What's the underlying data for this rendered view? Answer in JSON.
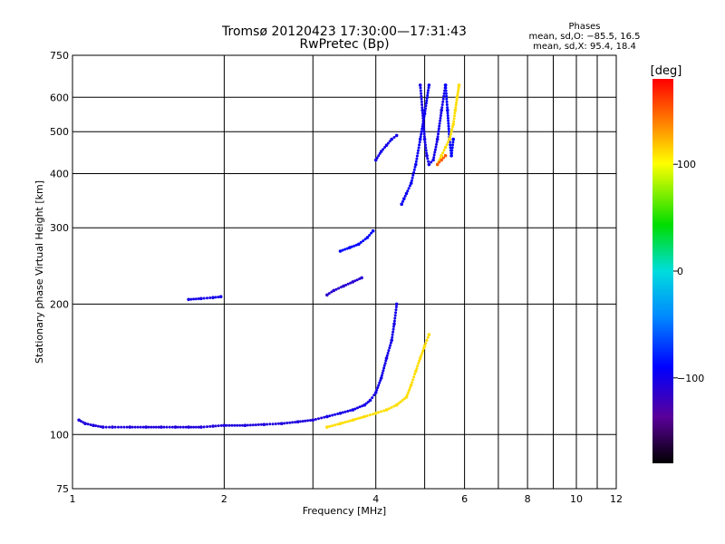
{
  "header": {
    "title_line1": "Tromsø 20120423 17:30:00—17:31:43",
    "title_line2": "RwPretec (Bp)",
    "phases_title": "Phases",
    "phases_line1": "mean, sd,O: −85.5, 16.5",
    "phases_line2": "mean, sd,X:  95.4, 18.4"
  },
  "colorbar": {
    "unit": "[deg]",
    "ticks": [
      {
        "value": 100,
        "label": "100"
      },
      {
        "value": 0,
        "label": "0"
      },
      {
        "value": -100,
        "label": "−100"
      }
    ],
    "range": [
      -180,
      180
    ]
  },
  "chart_data": {
    "type": "scatter",
    "title": "Tromsø 20120423 17:30:00—17:31:43",
    "subtitle": "RwPretec (Bp)",
    "xlabel": "Frequency [MHz]",
    "ylabel": "Stationary phase Virtual Height [km]",
    "x_scale": "log",
    "y_scale": "log",
    "xlim": [
      1,
      12
    ],
    "ylim": [
      75,
      750
    ],
    "x_ticks": [
      {
        "value": 1,
        "label": "1"
      },
      {
        "value": 2,
        "label": "2"
      },
      {
        "value": 4,
        "label": "4"
      },
      {
        "value": 6,
        "label": "6"
      },
      {
        "value": 8,
        "label": "8"
      },
      {
        "value": 10,
        "label": "10"
      },
      {
        "value": 12,
        "label": "12"
      }
    ],
    "x_grid": [
      1,
      2,
      3,
      4,
      5,
      6,
      7,
      8,
      9,
      10,
      11,
      12
    ],
    "y_ticks": [
      {
        "value": 75,
        "label": "75"
      },
      {
        "value": 100,
        "label": "100"
      },
      {
        "value": 200,
        "label": "200"
      },
      {
        "value": 300,
        "label": "300"
      },
      {
        "value": 400,
        "label": "400"
      },
      {
        "value": 500,
        "label": "500"
      },
      {
        "value": 600,
        "label": "600"
      },
      {
        "value": 750,
        "label": "750"
      }
    ],
    "grid": true,
    "traces": [
      {
        "component": "O",
        "phase_deg": -105,
        "points": [
          [
            1.03,
            108
          ],
          [
            1.06,
            106
          ],
          [
            1.1,
            105
          ],
          [
            1.15,
            104
          ],
          [
            1.2,
            104
          ],
          [
            1.3,
            104
          ],
          [
            1.4,
            104
          ],
          [
            1.5,
            104
          ],
          [
            1.6,
            104
          ],
          [
            1.7,
            104
          ],
          [
            1.8,
            104
          ],
          [
            1.9,
            104.5
          ],
          [
            2.0,
            105
          ],
          [
            2.2,
            105
          ],
          [
            2.4,
            105.5
          ],
          [
            2.6,
            106
          ],
          [
            2.8,
            107
          ],
          [
            3.0,
            108
          ],
          [
            3.2,
            110
          ]
        ]
      },
      {
        "component": "O",
        "phase_deg": -100,
        "points": [
          [
            3.2,
            110
          ],
          [
            3.4,
            112
          ],
          [
            3.6,
            114
          ],
          [
            3.8,
            117
          ],
          [
            3.9,
            120
          ],
          [
            4.0,
            125
          ],
          [
            4.1,
            135
          ],
          [
            4.2,
            150
          ],
          [
            4.3,
            165
          ],
          [
            4.35,
            180
          ],
          [
            4.4,
            200
          ]
        ]
      },
      {
        "component": "O",
        "phase_deg": -110,
        "points": [
          [
            3.2,
            210
          ],
          [
            3.3,
            215
          ],
          [
            3.45,
            220
          ],
          [
            3.6,
            225
          ],
          [
            3.75,
            230
          ]
        ]
      },
      {
        "component": "O",
        "phase_deg": -90,
        "points": [
          [
            3.4,
            265
          ],
          [
            3.55,
            270
          ],
          [
            3.7,
            275
          ],
          [
            3.85,
            285
          ],
          [
            3.95,
            295
          ]
        ]
      },
      {
        "component": "O",
        "phase_deg": -100,
        "points": [
          [
            1.7,
            205
          ],
          [
            1.8,
            206
          ],
          [
            1.9,
            207
          ],
          [
            1.97,
            208
          ]
        ]
      },
      {
        "component": "O",
        "phase_deg": -100,
        "points": [
          [
            4.0,
            430
          ],
          [
            4.1,
            450
          ],
          [
            4.2,
            465
          ],
          [
            4.3,
            480
          ],
          [
            4.4,
            490
          ]
        ]
      },
      {
        "component": "O",
        "phase_deg": -95,
        "points": [
          [
            4.5,
            340
          ],
          [
            4.55,
            350
          ],
          [
            4.6,
            360
          ],
          [
            4.7,
            380
          ],
          [
            4.8,
            420
          ],
          [
            4.9,
            480
          ],
          [
            5.0,
            550
          ],
          [
            5.1,
            640
          ]
        ]
      },
      {
        "component": "O",
        "phase_deg": -100,
        "points": [
          [
            4.9,
            640
          ],
          [
            4.95,
            560
          ],
          [
            5.0,
            480
          ],
          [
            5.05,
            440
          ],
          [
            5.1,
            420
          ],
          [
            5.2,
            430
          ],
          [
            5.3,
            480
          ],
          [
            5.4,
            560
          ],
          [
            5.5,
            640
          ]
        ]
      },
      {
        "component": "O",
        "phase_deg": -90,
        "points": [
          [
            5.5,
            640
          ],
          [
            5.55,
            560
          ],
          [
            5.6,
            480
          ],
          [
            5.65,
            440
          ],
          [
            5.7,
            480
          ]
        ]
      },
      {
        "component": "X",
        "phase_deg": 110,
        "points": [
          [
            3.2,
            104
          ],
          [
            3.4,
            106
          ],
          [
            3.6,
            108
          ],
          [
            3.8,
            110
          ],
          [
            4.0,
            112
          ],
          [
            4.2,
            114
          ],
          [
            4.4,
            117
          ],
          [
            4.6,
            122
          ],
          [
            4.7,
            130
          ],
          [
            4.8,
            140
          ],
          [
            4.9,
            150
          ],
          [
            5.0,
            160
          ],
          [
            5.1,
            170
          ]
        ]
      },
      {
        "component": "X",
        "phase_deg": 110,
        "points": [
          [
            5.3,
            420
          ],
          [
            5.4,
            440
          ],
          [
            5.5,
            460
          ],
          [
            5.6,
            480
          ],
          [
            5.7,
            520
          ],
          [
            5.75,
            560
          ],
          [
            5.8,
            600
          ],
          [
            5.85,
            640
          ]
        ]
      },
      {
        "component": "X",
        "phase_deg": 150,
        "points": [
          [
            5.3,
            420
          ],
          [
            5.4,
            430
          ],
          [
            5.5,
            440
          ]
        ]
      }
    ]
  }
}
